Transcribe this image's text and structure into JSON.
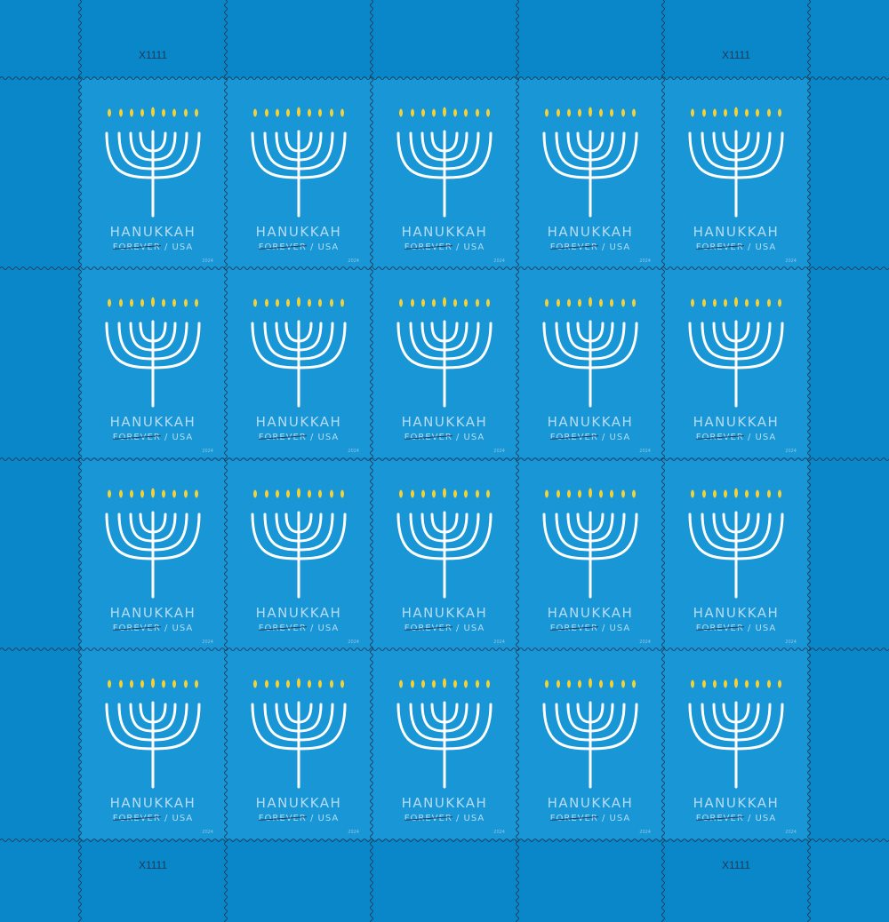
{
  "plate_numbers": {
    "top_left": "X1111",
    "top_right": "X1111",
    "bottom_left": "X1111",
    "bottom_right": "X1111"
  },
  "stamp": {
    "title": "HANUKKAH",
    "denomination": "FOREVER",
    "separator": "/",
    "country": "USA",
    "year": "2024"
  },
  "grid": {
    "rows": 4,
    "columns": 5
  },
  "colors": {
    "selvage": "#0a87c9",
    "stamp": "#1896d6",
    "flame": "#f2d13a",
    "menorah": "#ffffff",
    "text": "#b4dcf4"
  },
  "icons": {
    "stamp_art": "menorah-icon",
    "flame": "flame-icon"
  }
}
